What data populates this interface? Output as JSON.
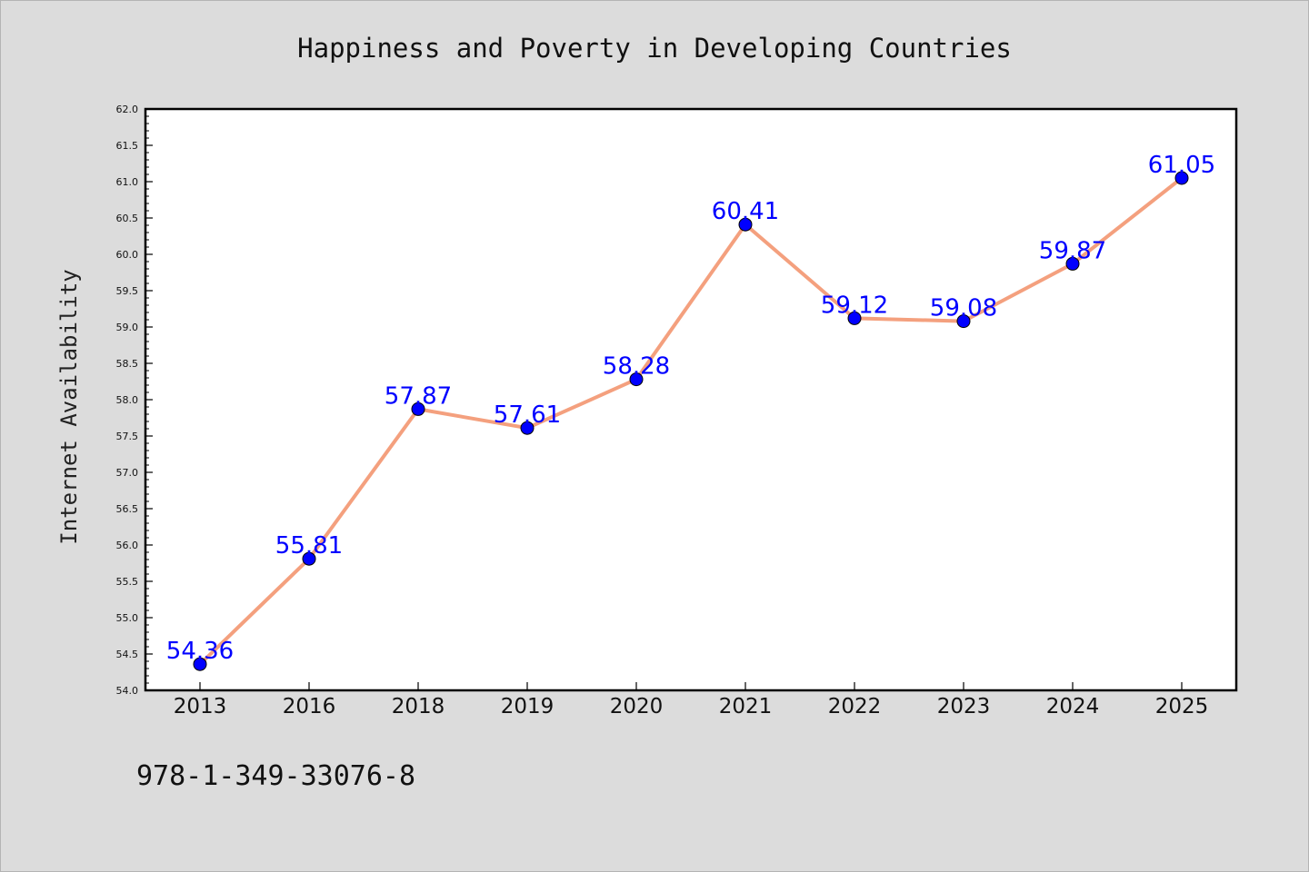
{
  "chart_data": {
    "type": "line",
    "title": "Happiness and Poverty in Developing Countries",
    "xlabel": "",
    "ylabel": "Internet Availability",
    "categories": [
      "2013",
      "2016",
      "2018",
      "2019",
      "2020",
      "2021",
      "2022",
      "2023",
      "2024",
      "2025"
    ],
    "values": [
      54.36,
      55.81,
      57.87,
      57.61,
      58.28,
      60.41,
      59.12,
      59.08,
      59.87,
      61.05
    ],
    "data_labels": [
      "54.36",
      "55.81",
      "57.87",
      "57.61",
      "58.28",
      "60.41",
      "59.12",
      "59.08",
      "59.87",
      "61.05"
    ],
    "ylim": [
      54.0,
      62.0
    ],
    "yticks": [
      "54.0",
      "54.5",
      "55.0",
      "55.5",
      "56.0",
      "56.5",
      "57.0",
      "57.5",
      "58.0",
      "58.5",
      "59.0",
      "59.5",
      "60.0",
      "60.5",
      "61.0",
      "61.5",
      "62.0"
    ],
    "grid": false,
    "legend": "none",
    "line_color": "#f4a07e",
    "marker_color": "#0000ff",
    "label_color": "#0000ff"
  },
  "footer": {
    "isbn": "978-1-349-33076-8"
  },
  "colors": {
    "background": "#dcdcdc",
    "plot_background": "#ffffff",
    "axis": "#000000"
  }
}
